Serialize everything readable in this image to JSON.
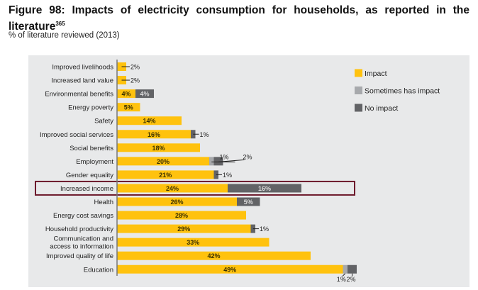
{
  "title": "Figure 98: Impacts of electricity consumption for households, as reported in the literature",
  "title_footnote": "365",
  "subtitle": "% of literature reviewed (2013)",
  "chart_data": {
    "type": "bar",
    "orientation": "horizontal",
    "stacked": true,
    "unit": "%",
    "xlim": [
      0,
      50
    ],
    "grid": false,
    "legend_position": "right",
    "highlighted_category": "Increased income",
    "categories": [
      "Improved livelihoods",
      "Increased land value",
      "Environmental benefits",
      "Energy poverty",
      "Safety",
      "Improved social services",
      "Social benefits",
      "Employment",
      "Gender equality",
      "Increased income",
      "Health",
      "Energy cost savings",
      "Household productivity",
      "Communication and access to information",
      "Improved quality of life",
      "Education"
    ],
    "series": [
      {
        "name": "Impact",
        "color": "#ffc20e",
        "values": [
          2,
          2,
          4,
          5,
          14,
          16,
          18,
          20,
          21,
          24,
          26,
          28,
          29,
          33,
          42,
          49
        ]
      },
      {
        "name": "Sometimes has impact",
        "color": "#a7a9ac",
        "values": [
          0,
          0,
          0,
          0,
          0,
          0,
          0,
          1,
          0,
          0,
          0,
          0,
          0,
          0,
          0,
          1
        ]
      },
      {
        "name": "No impact",
        "color": "#626366",
        "values": [
          0,
          0,
          4,
          0,
          0,
          1,
          0,
          2,
          1,
          16,
          5,
          0,
          1,
          0,
          0,
          2
        ]
      }
    ]
  },
  "highlight_color": "#6d1a2c"
}
